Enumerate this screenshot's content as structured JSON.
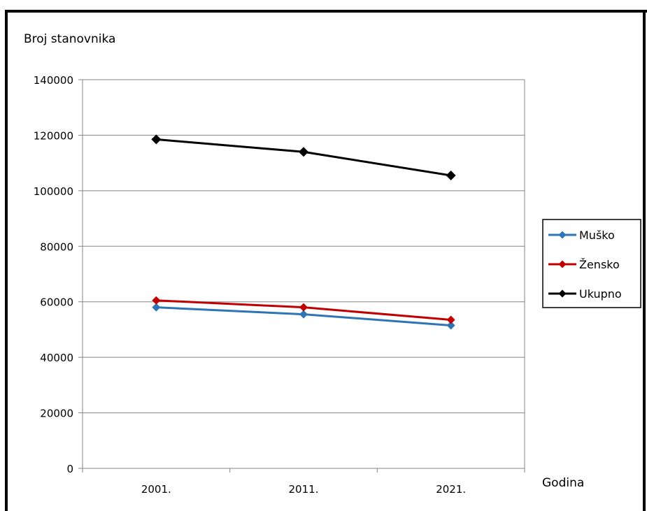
{
  "chart_data": {
    "type": "line",
    "ylabel": "Broj stanovnika",
    "xlabel": "Godina",
    "categories": [
      "2001.",
      "2011.",
      "2021."
    ],
    "ylim": [
      0,
      140000
    ],
    "yticks": [
      0,
      20000,
      40000,
      60000,
      80000,
      100000,
      120000,
      140000
    ],
    "grid": true,
    "legend_position": "right",
    "series": [
      {
        "name": "Muško",
        "color": "#2e75b6",
        "values": [
          58000,
          55500,
          51500
        ]
      },
      {
        "name": "Žensko",
        "color": "#c00000",
        "values": [
          60500,
          58000,
          53500
        ]
      },
      {
        "name": "Ukupno",
        "color": "#000000",
        "values": [
          118500,
          114000,
          105500
        ]
      }
    ]
  }
}
